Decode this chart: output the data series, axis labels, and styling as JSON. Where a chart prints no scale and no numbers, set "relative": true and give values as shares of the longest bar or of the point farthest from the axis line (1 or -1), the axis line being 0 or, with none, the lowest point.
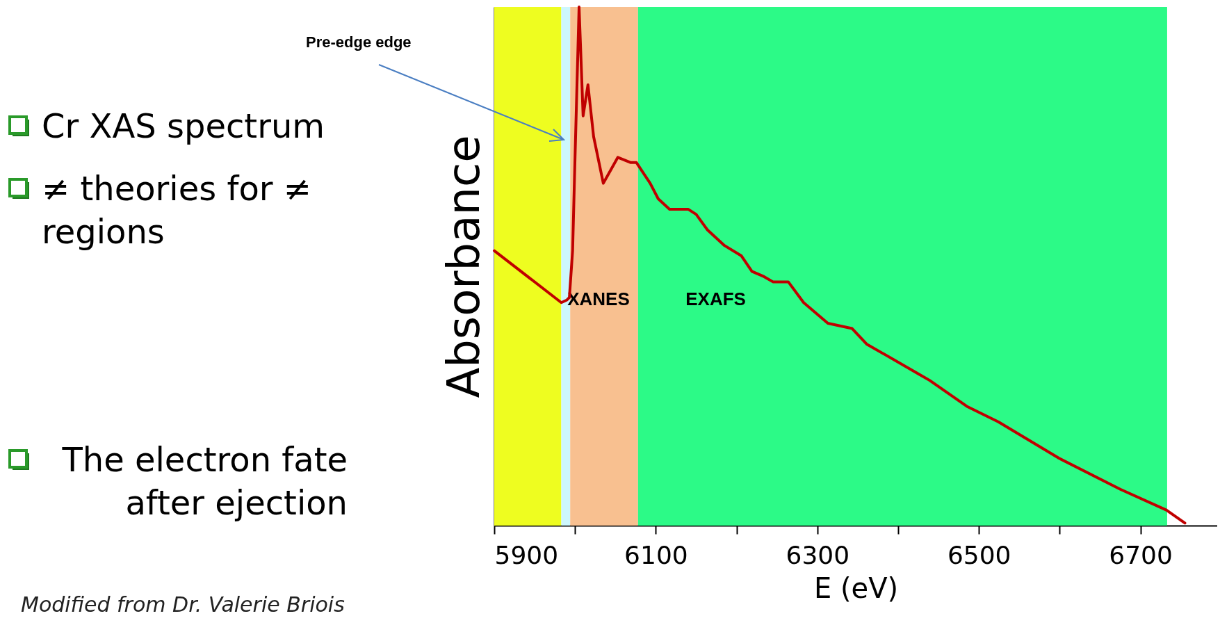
{
  "chart_data": {
    "type": "line",
    "relative": true,
    "xlabel": "E (eV)",
    "ylabel": "Absorbance",
    "x": [
      5900,
      5983,
      5990,
      5993,
      5997,
      6000,
      6005,
      6010,
      6016,
      6023,
      6035,
      6053,
      6069,
      6076,
      6093,
      6103,
      6117,
      6140,
      6150,
      6164,
      6185,
      6206,
      6219,
      6234,
      6245,
      6264,
      6283,
      6313,
      6343,
      6361,
      6428,
      6439,
      6485,
      6524,
      6599,
      6675,
      6732,
      6755
    ],
    "series": [
      {
        "color": "#c00000",
        "values": [
          0.53,
          0.43,
          0.435,
          0.44,
          0.53,
          0.71,
          1.0,
          0.79,
          0.85,
          0.75,
          0.66,
          0.71,
          0.7,
          0.7,
          0.66,
          0.63,
          0.61,
          0.61,
          0.6,
          0.57,
          0.54,
          0.52,
          0.49,
          0.48,
          0.47,
          0.47,
          0.43,
          0.39,
          0.38,
          0.35,
          0.29,
          0.28,
          0.23,
          0.2,
          0.13,
          0.07,
          0.03,
          0.005
        ]
      }
    ],
    "xlim": [
      5900,
      6795
    ],
    "xticks": [
      5900,
      {
        "value": 6000,
        "label": null
      },
      6100,
      {
        "value": 6200,
        "label": null
      },
      6300,
      {
        "value": 6400,
        "label": null
      },
      6500,
      {
        "value": 6600,
        "label": null
      },
      6700
    ],
    "tick_labels": "x",
    "grid": false,
    "line_style": "solid",
    "marker": "none",
    "bands": [
      {
        "axis": "x",
        "from": 5900,
        "to": 5983,
        "label": null,
        "color": "#eefd20"
      },
      {
        "axis": "x",
        "from": 5983,
        "to": 5994,
        "label": null,
        "color": "#cdf7fd"
      },
      {
        "axis": "x",
        "from": 5994,
        "to": 6078,
        "label": "XANES",
        "color": "#f8c090"
      },
      {
        "axis": "x",
        "from": 6078,
        "to": 6733,
        "label": "EXAFS",
        "color": "#2cfa87"
      }
    ],
    "annotations": [
      "Cr XAS spectrum",
      "≠ theories for ≠ regions",
      "The electron fate after ejection",
      "Pre-edge edge",
      "Modified from Dr. Valerie Briois"
    ]
  }
}
